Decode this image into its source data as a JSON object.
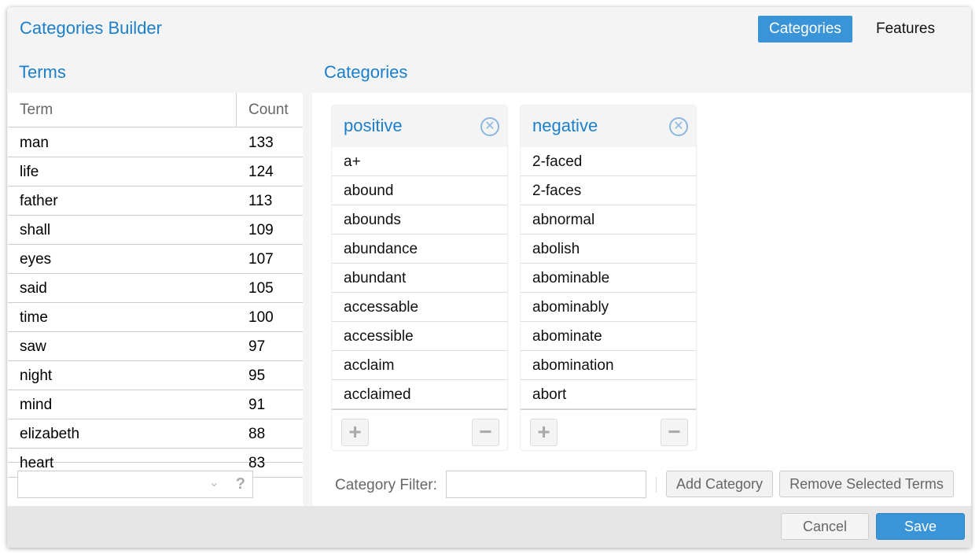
{
  "title": "Categories Builder",
  "tabs": [
    {
      "label": "Categories",
      "active": true
    },
    {
      "label": "Features",
      "active": false
    }
  ],
  "terms": {
    "title": "Terms",
    "columns": [
      "Term",
      "Count"
    ],
    "rows": [
      [
        "man",
        "133"
      ],
      [
        "life",
        "124"
      ],
      [
        "father",
        "113"
      ],
      [
        "shall",
        "109"
      ],
      [
        "eyes",
        "107"
      ],
      [
        "said",
        "105"
      ],
      [
        "time",
        "100"
      ],
      [
        "saw",
        "97"
      ],
      [
        "night",
        "95"
      ],
      [
        "mind",
        "91"
      ],
      [
        "elizabeth",
        "88"
      ],
      [
        "heart",
        "83"
      ]
    ],
    "filter_value": ""
  },
  "categories": {
    "title": "Categories",
    "cards": [
      {
        "name": "positive",
        "items": [
          "a+",
          "abound",
          "abounds",
          "abundance",
          "abundant",
          "accessable",
          "accessible",
          "acclaim",
          "acclaimed"
        ]
      },
      {
        "name": "negative",
        "items": [
          "2-faced",
          "2-faces",
          "abnormal",
          "abolish",
          "abominable",
          "abominably",
          "abominate",
          "abomination",
          "abort"
        ]
      }
    ],
    "filter_label": "Category Filter:",
    "filter_value": "",
    "add_label": "Add Category",
    "remove_label": "Remove Selected Terms"
  },
  "footer": {
    "cancel": "Cancel",
    "save": "Save"
  },
  "colors": {
    "accent": "#3a94d8",
    "title": "#1b7fcc"
  }
}
